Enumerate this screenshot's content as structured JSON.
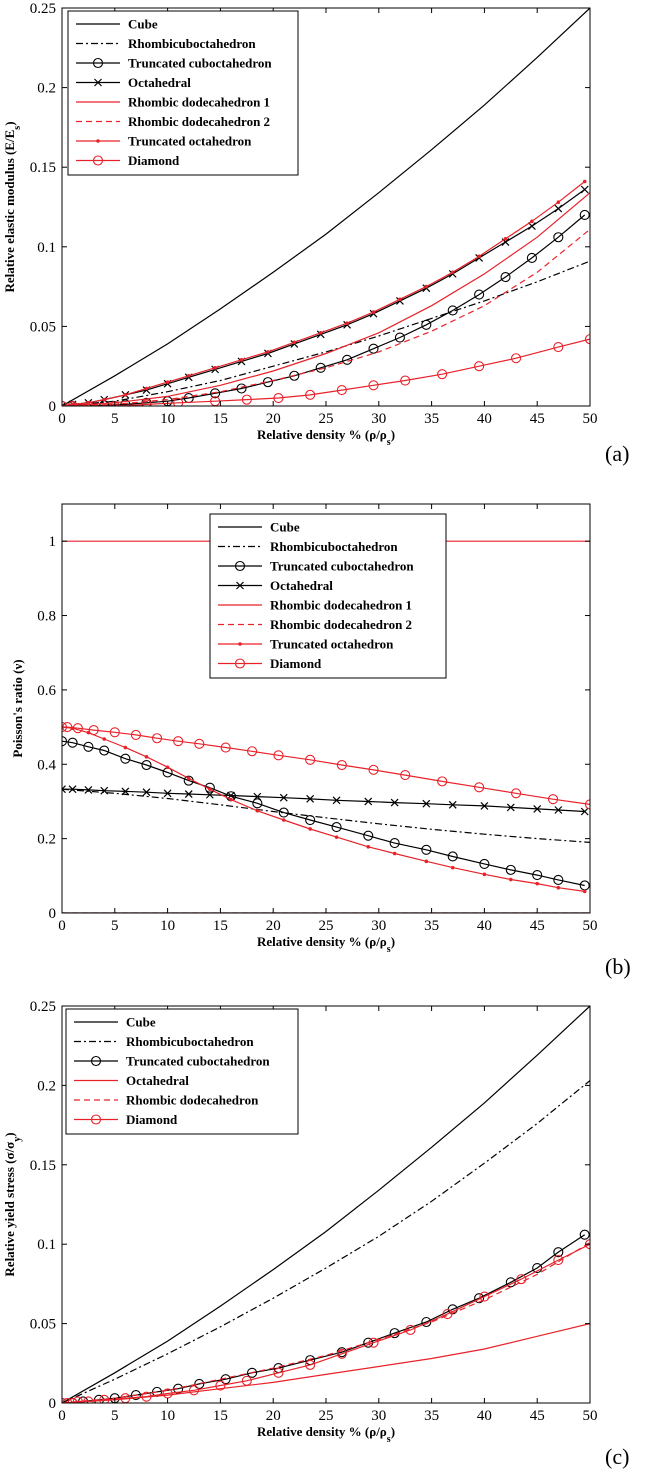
{
  "colors": {
    "black": "#000000",
    "red": "#e8222a"
  },
  "chart_data": [
    {
      "type": "line",
      "panel_label": "(a)",
      "xlabel": "Relative density % (ρ/ρ",
      "xlabel_sub": "s",
      "xlabel_end": ")",
      "ylabel": "Relative elastic modulus (E/E",
      "ylabel_sub": "s",
      "ylabel_end": ")",
      "xlim": [
        0,
        50
      ],
      "ylim": [
        0,
        0.25
      ],
      "xticks": [
        "0",
        "5",
        "10",
        "15",
        "20",
        "25",
        "30",
        "35",
        "40",
        "45",
        "50"
      ],
      "yticks": [
        "0",
        "0.05",
        "0.1",
        "0.15",
        "0.2",
        "0.25"
      ],
      "legend_position": "top-left",
      "series": [
        {
          "name": "Cube",
          "color": "#000000",
          "dash": "solid",
          "marker": "none",
          "x": [
            0,
            5,
            10,
            15,
            20,
            25,
            30,
            35,
            40,
            45,
            50
          ],
          "y": [
            0,
            0.019,
            0.039,
            0.061,
            0.084,
            0.108,
            0.134,
            0.161,
            0.189,
            0.219,
            0.25
          ]
        },
        {
          "name": "Rhombicuboctahedron",
          "color": "#000000",
          "dash": "dashdot",
          "marker": "none",
          "x": [
            0,
            5,
            10,
            15,
            20,
            25,
            30,
            35,
            40,
            45,
            50
          ],
          "y": [
            0,
            0.003,
            0.009,
            0.016,
            0.025,
            0.034,
            0.044,
            0.055,
            0.066,
            0.078,
            0.091
          ]
        },
        {
          "name": "Truncated cuboctahedron",
          "color": "#000000",
          "dash": "solid",
          "marker": "circle",
          "x": [
            0,
            1,
            2.5,
            4,
            6,
            8,
            10,
            12,
            14.5,
            17,
            19.5,
            22,
            24.5,
            27,
            29.5,
            32,
            34.5,
            37,
            39.5,
            42,
            44.5,
            47,
            49.5
          ],
          "y": [
            0,
            0,
            0,
            0.0005,
            0.001,
            0.002,
            0.003,
            0.005,
            0.008,
            0.011,
            0.015,
            0.019,
            0.024,
            0.029,
            0.036,
            0.043,
            0.051,
            0.06,
            0.07,
            0.081,
            0.093,
            0.106,
            0.12
          ]
        },
        {
          "name": "Octahedral",
          "color": "#000000",
          "dash": "solid",
          "marker": "x",
          "x": [
            0,
            1,
            2.5,
            4,
            6,
            8,
            10,
            12,
            14.5,
            17,
            19.5,
            22,
            24.5,
            27,
            29.5,
            32,
            34.5,
            37,
            39.5,
            42,
            44.5,
            47,
            49.5
          ],
          "y": [
            0,
            0.001,
            0.002,
            0.004,
            0.007,
            0.01,
            0.014,
            0.018,
            0.023,
            0.028,
            0.033,
            0.039,
            0.045,
            0.051,
            0.058,
            0.066,
            0.074,
            0.083,
            0.093,
            0.103,
            0.113,
            0.124,
            0.136
          ]
        },
        {
          "name": "Rhombic dodecahedron 1",
          "color": "#e8222a",
          "dash": "solid",
          "marker": "none",
          "x": [
            0,
            5,
            10,
            15,
            20,
            25,
            30,
            35,
            40,
            45,
            50
          ],
          "y": [
            0,
            0.002,
            0.006,
            0.013,
            0.022,
            0.033,
            0.046,
            0.063,
            0.083,
            0.106,
            0.134
          ]
        },
        {
          "name": "Rhombic dodecahedron 2",
          "color": "#e8222a",
          "dash": "dashed",
          "marker": "none",
          "x": [
            0,
            5,
            10,
            15,
            20,
            25,
            30,
            35,
            40,
            45,
            50
          ],
          "y": [
            0,
            0.001,
            0.004,
            0.009,
            0.016,
            0.024,
            0.034,
            0.047,
            0.063,
            0.084,
            0.111
          ]
        },
        {
          "name": "Truncated octahedron",
          "color": "#e8222a",
          "dash": "solid",
          "marker": "dot",
          "x": [
            0,
            1,
            2.5,
            4,
            6,
            8,
            10,
            12,
            14.5,
            17,
            19.5,
            22,
            24.5,
            27,
            29.5,
            32,
            34.5,
            37,
            39.5,
            42,
            44.5,
            47,
            49.5
          ],
          "y": [
            0,
            0.001,
            0.002,
            0.004,
            0.007,
            0.011,
            0.015,
            0.019,
            0.024,
            0.029,
            0.034,
            0.04,
            0.046,
            0.052,
            0.059,
            0.067,
            0.075,
            0.084,
            0.094,
            0.105,
            0.116,
            0.128,
            0.141
          ]
        },
        {
          "name": "Diamond",
          "color": "#e8222a",
          "dash": "solid",
          "marker": "circle",
          "x": [
            0,
            1,
            2.5,
            5,
            8,
            11,
            14.5,
            17.5,
            20.5,
            23.5,
            26.5,
            29.5,
            32.5,
            36,
            39.5,
            43,
            47,
            50
          ],
          "y": [
            0,
            0,
            0,
            0,
            0.001,
            0.002,
            0.003,
            0.004,
            0.005,
            0.007,
            0.01,
            0.013,
            0.016,
            0.02,
            0.025,
            0.03,
            0.037,
            0.042
          ]
        }
      ]
    },
    {
      "type": "line",
      "panel_label": "(b)",
      "xlabel": "Relative density % (ρ/ρ",
      "xlabel_sub": "s",
      "xlabel_end": ")",
      "ylabel": "Poisson's ratio (ν)",
      "xlim": [
        0,
        50
      ],
      "ylim": [
        0,
        1.1
      ],
      "xticks": [
        "0",
        "5",
        "10",
        "15",
        "20",
        "25",
        "30",
        "35",
        "40",
        "45",
        "50"
      ],
      "yticks": [
        "0",
        "0.2",
        "0.4",
        "0.6",
        "0.8",
        "1"
      ],
      "ytick_values": [
        0,
        0.2,
        0.4,
        0.6,
        0.8,
        1
      ],
      "legend_position": "top-center",
      "series": [
        {
          "name": "Cube",
          "color": "#000000",
          "dash": "solid",
          "marker": "none",
          "x": [
            0,
            50
          ],
          "y": [
            0,
            0
          ]
        },
        {
          "name": "Rhombicuboctahedron",
          "color": "#000000",
          "dash": "dashdot",
          "marker": "none",
          "x": [
            0,
            5,
            10,
            15,
            20,
            25,
            30,
            35,
            40,
            45,
            50
          ],
          "y": [
            0.333,
            0.322,
            0.308,
            0.291,
            0.273,
            0.256,
            0.24,
            0.225,
            0.212,
            0.2,
            0.19
          ]
        },
        {
          "name": "Truncated cuboctahedron",
          "color": "#000000",
          "dash": "solid",
          "marker": "circle",
          "x": [
            0,
            1,
            2.5,
            4,
            6,
            8,
            10,
            12,
            14,
            16,
            18.5,
            21,
            23.5,
            26,
            29,
            31.5,
            34.5,
            37,
            40,
            42.5,
            45,
            47,
            49.5
          ],
          "y": [
            0.462,
            0.458,
            0.447,
            0.437,
            0.415,
            0.398,
            0.378,
            0.356,
            0.337,
            0.314,
            0.295,
            0.27,
            0.25,
            0.231,
            0.208,
            0.188,
            0.17,
            0.152,
            0.132,
            0.116,
            0.102,
            0.089,
            0.074
          ]
        },
        {
          "name": "Octahedral",
          "color": "#000000",
          "dash": "solid",
          "marker": "x",
          "x": [
            0,
            1,
            2.5,
            4,
            6,
            8,
            10,
            12,
            14,
            16,
            18.5,
            21,
            23.5,
            26,
            29,
            31.5,
            34.5,
            37,
            40,
            42.5,
            45,
            47,
            49.5
          ],
          "y": [
            0.333,
            0.333,
            0.331,
            0.329,
            0.327,
            0.325,
            0.322,
            0.32,
            0.318,
            0.316,
            0.313,
            0.31,
            0.307,
            0.303,
            0.3,
            0.297,
            0.294,
            0.291,
            0.288,
            0.284,
            0.28,
            0.277,
            0.273
          ]
        },
        {
          "name": "Rhombic dodecahedron 1",
          "color": "#e8222a",
          "dash": "solid",
          "marker": "none",
          "x": [
            0,
            50
          ],
          "y": [
            1,
            1
          ]
        },
        {
          "name": "Rhombic dodecahedron 2",
          "color": "#e8222a",
          "dash": "dashed",
          "marker": "none",
          "x": [
            0,
            50
          ],
          "y": [
            0,
            0
          ]
        },
        {
          "name": "Truncated octahedron",
          "color": "#e8222a",
          "dash": "solid",
          "marker": "dot",
          "x": [
            0,
            1,
            2.5,
            4,
            6,
            8,
            10,
            12,
            14,
            16,
            18.5,
            21,
            23.5,
            26,
            29,
            31.5,
            34.5,
            37,
            40,
            42.5,
            45,
            47,
            49.5
          ],
          "y": [
            0.5,
            0.497,
            0.485,
            0.468,
            0.445,
            0.42,
            0.392,
            0.362,
            0.333,
            0.305,
            0.275,
            0.25,
            0.226,
            0.204,
            0.178,
            0.16,
            0.139,
            0.122,
            0.104,
            0.09,
            0.079,
            0.068,
            0.058
          ]
        },
        {
          "name": "Diamond",
          "color": "#e8222a",
          "dash": "solid",
          "marker": "circle",
          "x": [
            0,
            0.5,
            1.5,
            3,
            5,
            7,
            9,
            11,
            13,
            15.5,
            18,
            20.5,
            23.5,
            26.5,
            29.5,
            32.5,
            36,
            39.5,
            43,
            46.5,
            50
          ],
          "y": [
            0.5,
            0.5,
            0.497,
            0.492,
            0.486,
            0.479,
            0.47,
            0.462,
            0.455,
            0.445,
            0.435,
            0.424,
            0.412,
            0.398,
            0.385,
            0.371,
            0.354,
            0.338,
            0.322,
            0.306,
            0.292
          ]
        }
      ]
    },
    {
      "type": "line",
      "panel_label": "(c)",
      "xlabel": "Relative density % (ρ/ρ",
      "xlabel_sub": "s",
      "xlabel_end": ")",
      "ylabel": "Relative yield stress (σ/σ",
      "ylabel_sub": "y",
      "ylabel_end": ")",
      "xlim": [
        0,
        50
      ],
      "ylim": [
        0,
        0.25
      ],
      "xticks": [
        "0",
        "5",
        "10",
        "15",
        "20",
        "25",
        "30",
        "35",
        "40",
        "45",
        "50"
      ],
      "yticks": [
        "0",
        "0.05",
        "0.1",
        "0.15",
        "0.2",
        "0.25"
      ],
      "legend_position": "top-left",
      "series": [
        {
          "name": "Cube",
          "color": "#000000",
          "dash": "solid",
          "marker": "none",
          "x": [
            0,
            5,
            10,
            15,
            20,
            25,
            30,
            35,
            40,
            45,
            50
          ],
          "y": [
            0,
            0.019,
            0.039,
            0.061,
            0.084,
            0.108,
            0.134,
            0.161,
            0.189,
            0.219,
            0.25
          ]
        },
        {
          "name": "Rhombicuboctahedron",
          "color": "#000000",
          "dash": "dashdot",
          "marker": "none",
          "x": [
            0,
            5,
            10,
            15,
            20,
            25,
            30,
            35,
            40,
            45,
            50
          ],
          "y": [
            0,
            0.015,
            0.031,
            0.048,
            0.066,
            0.085,
            0.105,
            0.127,
            0.151,
            0.176,
            0.203
          ]
        },
        {
          "name": "Truncated cuboctahedron",
          "color": "#000000",
          "dash": "solid",
          "marker": "circle",
          "x": [
            0,
            1,
            2,
            3.5,
            5,
            7,
            9,
            11,
            13,
            15.5,
            18,
            20.5,
            23.5,
            26.5,
            29,
            31.5,
            34.5,
            37,
            39.5,
            42.5,
            45,
            47,
            49.5
          ],
          "y": [
            0,
            0,
            0.001,
            0.002,
            0.003,
            0.005,
            0.007,
            0.009,
            0.012,
            0.015,
            0.019,
            0.022,
            0.027,
            0.032,
            0.038,
            0.044,
            0.051,
            0.059,
            0.066,
            0.076,
            0.085,
            0.095,
            0.106
          ]
        },
        {
          "name": "Octahedral",
          "color": "#e8222a",
          "dash": "solid",
          "marker": "none",
          "x": [
            0,
            5,
            10,
            15,
            20,
            25,
            30,
            35,
            40,
            45,
            50
          ],
          "y": [
            0,
            0.002,
            0.005,
            0.009,
            0.013,
            0.018,
            0.023,
            0.028,
            0.034,
            0.042,
            0.05
          ]
        },
        {
          "name": "Rhombic dodecahedron",
          "color": "#e8222a",
          "dash": "dashed",
          "marker": "none",
          "x": [
            0,
            5,
            10,
            15,
            20,
            25,
            30,
            35,
            40,
            45,
            50
          ],
          "y": [
            0,
            0.003,
            0.008,
            0.015,
            0.022,
            0.03,
            0.04,
            0.051,
            0.065,
            0.081,
            0.101
          ]
        },
        {
          "name": "Diamond",
          "color": "#e8222a",
          "dash": "solid",
          "marker": "circle",
          "x": [
            0,
            0.5,
            1,
            1.5,
            2.5,
            4,
            6,
            8,
            10,
            12.5,
            15,
            17.5,
            20.5,
            23.5,
            26.5,
            29.5,
            33,
            36.5,
            40,
            43.5,
            47,
            50
          ],
          "y": [
            0,
            0,
            0,
            0.001,
            0.001,
            0.002,
            0.003,
            0.004,
            0.006,
            0.008,
            0.011,
            0.014,
            0.019,
            0.024,
            0.031,
            0.038,
            0.046,
            0.056,
            0.067,
            0.078,
            0.09,
            0.1
          ]
        }
      ]
    }
  ]
}
